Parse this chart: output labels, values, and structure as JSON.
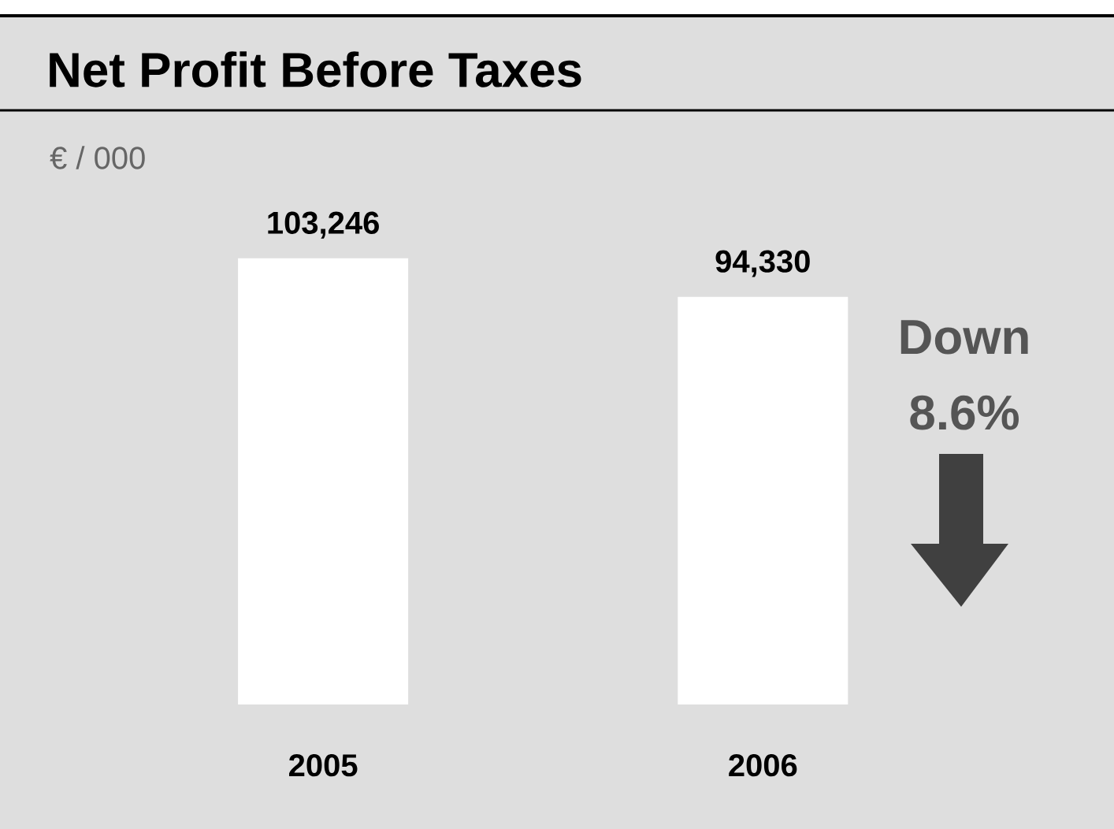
{
  "chart_data": {
    "type": "bar",
    "title": "Net Profit Before Taxes",
    "categories": [
      "2005",
      "2006"
    ],
    "values": [
      103246,
      94330
    ],
    "color": "#ffffff",
    "value_labels": [
      "103,246",
      "94,330"
    ],
    "annotations": [
      "€ / 000",
      "Down 8.6%"
    ]
  }
}
